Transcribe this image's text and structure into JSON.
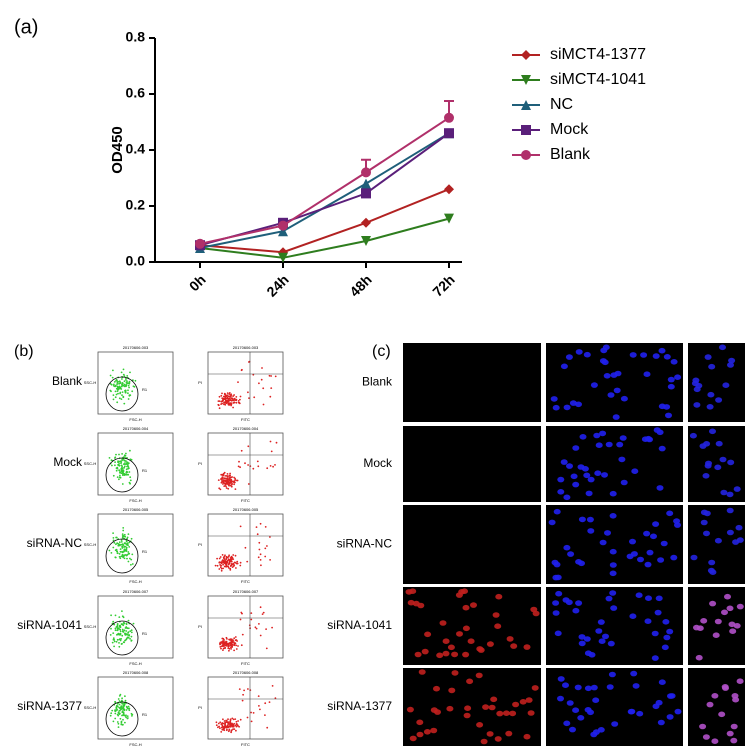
{
  "chart_data": {
    "type": "line",
    "ylabel": "OD450",
    "categories": [
      "0h",
      "24h",
      "48h",
      "72h"
    ],
    "series": [
      {
        "name": "siMCT4-1377",
        "color": "#b22222",
        "marker": "diamond",
        "values": [
          0.06,
          0.035,
          0.14,
          0.26
        ]
      },
      {
        "name": "siMCT4-1041",
        "color": "#2e7d1e",
        "marker": "triangle-down",
        "values": [
          0.05,
          0.015,
          0.075,
          0.155
        ]
      },
      {
        "name": "NC",
        "color": "#1f5f7a",
        "marker": "triangle",
        "values": [
          0.05,
          0.11,
          0.28,
          0.46
        ]
      },
      {
        "name": "Mock",
        "color": "#5a1f7a",
        "marker": "square",
        "values": [
          0.06,
          0.14,
          0.245,
          0.46
        ]
      },
      {
        "name": "Blank",
        "color": "#b0306a",
        "marker": "circle",
        "values": [
          0.065,
          0.13,
          0.32,
          0.515
        ],
        "errors": [
          null,
          null,
          0.045,
          0.06
        ]
      }
    ],
    "ylim": [
      0,
      0.8
    ],
    "yticks": [
      {
        "value": 0,
        "label": "0.0"
      },
      0.2,
      0.4,
      0.6,
      0.8
    ],
    "legend": "right"
  },
  "panels": {
    "a": "(a)",
    "b": "(b)",
    "c": "(c)"
  },
  "flow": {
    "rows": [
      "Blank",
      "Mock",
      "siRNA-NC",
      "siRNA-1041",
      "siRNA-1377"
    ],
    "ids": [
      "20170606.003",
      "20170606.004",
      "20170606.005",
      "20170606.007",
      "20170606.008"
    ],
    "gate": "R1",
    "left_x": "FSC-H",
    "left_y": "SSC-H",
    "right_x": "FITC",
    "right_y": "PI"
  },
  "fluorescence": {
    "rows": [
      "Blank",
      "Mock",
      "siRNA-NC",
      "siRNA-1041",
      "siRNA-1377"
    ]
  }
}
